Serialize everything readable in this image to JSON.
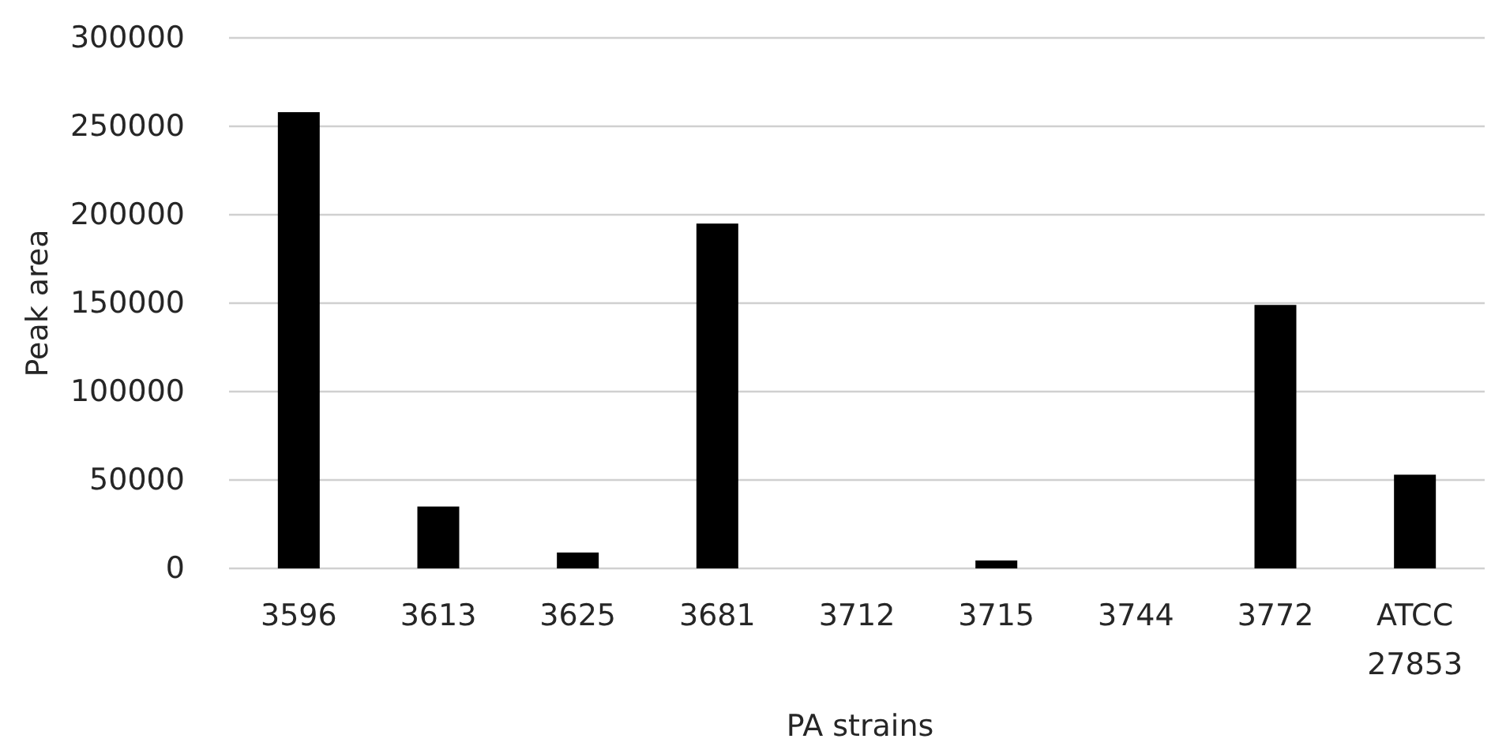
{
  "chart_data": {
    "type": "bar",
    "xlabel": "PA strains",
    "ylabel": "Peak area",
    "categories": [
      "3596",
      "3613",
      "3625",
      "3681",
      "3712",
      "3715",
      "3744",
      "3772",
      "ATCC 27853"
    ],
    "values": [
      258000,
      35000,
      9000,
      195000,
      0,
      4500,
      0,
      149000,
      53000
    ],
    "color": "#000000",
    "ylim": [
      0,
      300000
    ],
    "yticks": [
      0,
      50000,
      100000,
      150000,
      200000,
      250000,
      300000
    ],
    "grid": "y"
  }
}
